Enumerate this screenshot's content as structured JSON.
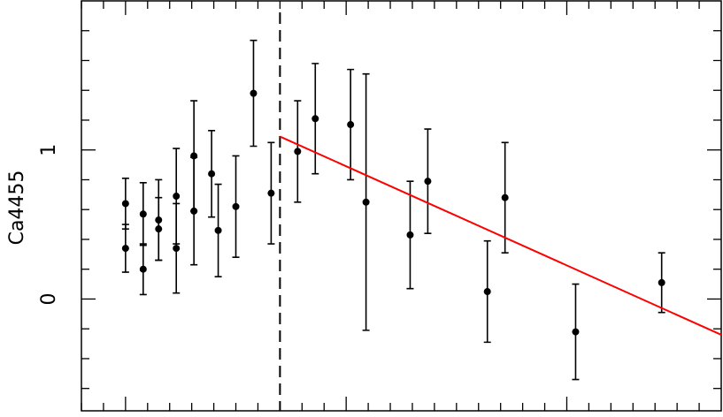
{
  "chart_data": {
    "type": "scatter",
    "ylabel": "Ca4455",
    "x": [
      0,
      0,
      0.08,
      0.08,
      0.15,
      0.15,
      0.23,
      0.23,
      0.31,
      0.31,
      0.39,
      0.42,
      0.5,
      0.58,
      0.66,
      0.78,
      0.86,
      1.02,
      1.09,
      1.29,
      1.37,
      1.64,
      1.72,
      2.04,
      2.43
    ],
    "values": [
      0.64,
      0.34,
      0.57,
      0.2,
      0.53,
      0.47,
      0.69,
      0.34,
      0.96,
      0.59,
      0.84,
      0.46,
      0.62,
      1.38,
      0.71,
      0.99,
      1.21,
      1.17,
      0.65,
      0.43,
      0.79,
      0.05,
      0.68,
      -0.22,
      0.11
    ],
    "errors": [
      0.17,
      0.16,
      0.21,
      0.17,
      0.27,
      0.21,
      0.32,
      0.3,
      0.37,
      0.36,
      0.29,
      0.31,
      0.34,
      0.355,
      0.34,
      0.34,
      0.37,
      0.37,
      0.86,
      0.36,
      0.35,
      0.34,
      0.37,
      0.32,
      0.2
    ],
    "color": "#000000",
    "fit": {
      "x": [
        0.7,
        2.7
      ],
      "values": [
        1.09,
        -0.24
      ],
      "color": "#ff0000"
    },
    "vline": 0.7,
    "xlim": [
      -0.2,
      2.7
    ],
    "ylim": [
      -0.75,
      2.0
    ],
    "xticks": [
      -0.2,
      -0.1,
      0,
      0.1,
      0.2,
      0.3,
      0.4,
      0.5,
      0.6,
      0.7,
      0.8,
      0.9,
      1,
      1.1,
      1.2,
      1.3,
      1.4,
      1.5,
      1.6,
      1.7,
      1.8,
      1.9,
      2,
      2.1,
      2.2,
      2.3,
      2.4,
      2.5,
      2.6
    ],
    "yticks": [
      0,
      1
    ],
    "yminorticks": [
      -0.6,
      -0.4,
      -0.2,
      0.2,
      0.4,
      0.6,
      0.8,
      1.2,
      1.4,
      1.6,
      1.8
    ]
  }
}
